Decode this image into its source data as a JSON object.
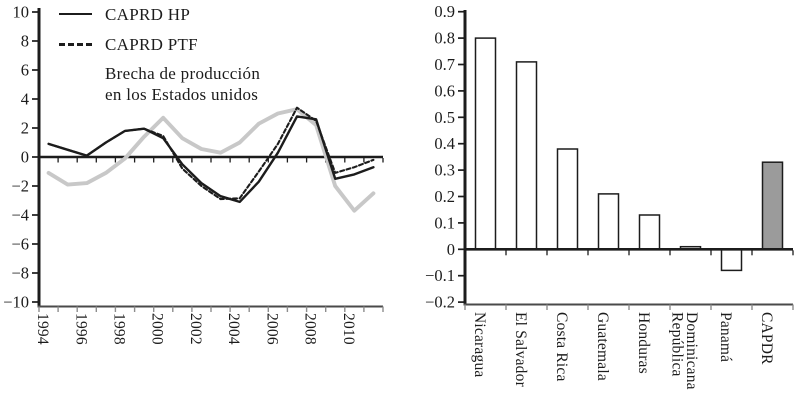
{
  "colors": {
    "line_black": "#1c1c1c",
    "line_gray": "#c8c8c8",
    "bar_fill": "#ffffff",
    "bar_highlight_fill": "#9b9b9b",
    "bar_outline": "#1c1c1c",
    "zero_axis": "#1c1c1c",
    "bottom_axis": "#4a4a4a",
    "bottom_tick": "#8d8d8d",
    "background": "#ffffff"
  },
  "chart_data": [
    {
      "type": "line",
      "title": "",
      "xlabel": "",
      "ylabel": "",
      "x": [
        1994,
        1995,
        1996,
        1997,
        1998,
        1999,
        2000,
        2001,
        2002,
        2003,
        2004,
        2005,
        2006,
        2007,
        2008,
        2009,
        2010,
        2011
      ],
      "x_tick_labels": [
        "1994",
        "1996",
        "1998",
        "2000",
        "2002",
        "2004",
        "2006",
        "2008",
        "2010"
      ],
      "ylim": [
        -10,
        10
      ],
      "ytick_values": [
        10,
        8,
        6,
        4,
        2,
        0,
        -2,
        -4,
        -6,
        -8,
        -10
      ],
      "ytick_labels": [
        "10",
        "8",
        "6",
        "4",
        "2",
        "0",
        "−2",
        "−4",
        "−6",
        "−8",
        "−10"
      ],
      "grid": false,
      "legend_position": "top-left",
      "series": [
        {
          "name": "CAPRD HP",
          "style": "solid-black",
          "values": [
            0.9,
            0.5,
            0.1,
            1.0,
            1.8,
            1.95,
            1.3,
            -0.5,
            -1.8,
            -2.7,
            -3.1,
            -1.7,
            0.3,
            2.8,
            2.6,
            -1.5,
            -1.2,
            -0.7
          ]
        },
        {
          "name": "CAPRD PTF",
          "style": "dashed-black",
          "values": [
            0.9,
            0.5,
            0.1,
            1.0,
            1.8,
            1.95,
            1.45,
            -0.8,
            -2.0,
            -2.9,
            -2.85,
            -1.0,
            0.9,
            3.4,
            2.5,
            -1.1,
            -0.7,
            -0.2
          ]
        },
        {
          "name": "Brecha de producción\nen los Estados unidos",
          "style": "thick-gray",
          "values": [
            -1.1,
            -1.9,
            -1.8,
            -1.1,
            -0.1,
            1.4,
            2.7,
            1.3,
            0.55,
            0.3,
            1.0,
            2.3,
            3.0,
            3.3,
            2.2,
            -2.0,
            -3.7,
            -2.5
          ]
        }
      ]
    },
    {
      "type": "bar",
      "title": "",
      "xlabel": "",
      "ylabel": "",
      "categories": [
        "Nicaragua",
        "El Salvador",
        "Costa Rica",
        "Guatemala",
        "Honduras",
        "República\nDominicana",
        "Panamá",
        "CAPDR"
      ],
      "values": [
        0.8,
        0.71,
        0.38,
        0.21,
        0.13,
        0.01,
        -0.08,
        0.33
      ],
      "highlight_category": "CAPDR",
      "highlight_index": 7,
      "ylim": [
        -0.2,
        0.9
      ],
      "ytick_values": [
        0.9,
        0.8,
        0.7,
        0.6,
        0.5,
        0.4,
        0.3,
        0.2,
        0.1,
        0,
        -0.1,
        -0.2
      ],
      "ytick_labels": [
        "0.9",
        "0.8",
        "0.7",
        "0.6",
        "0.5",
        "0.4",
        "0.3",
        "0.2",
        "0.1",
        "0",
        "−0.1",
        "−0.2"
      ],
      "grid": false
    }
  ]
}
